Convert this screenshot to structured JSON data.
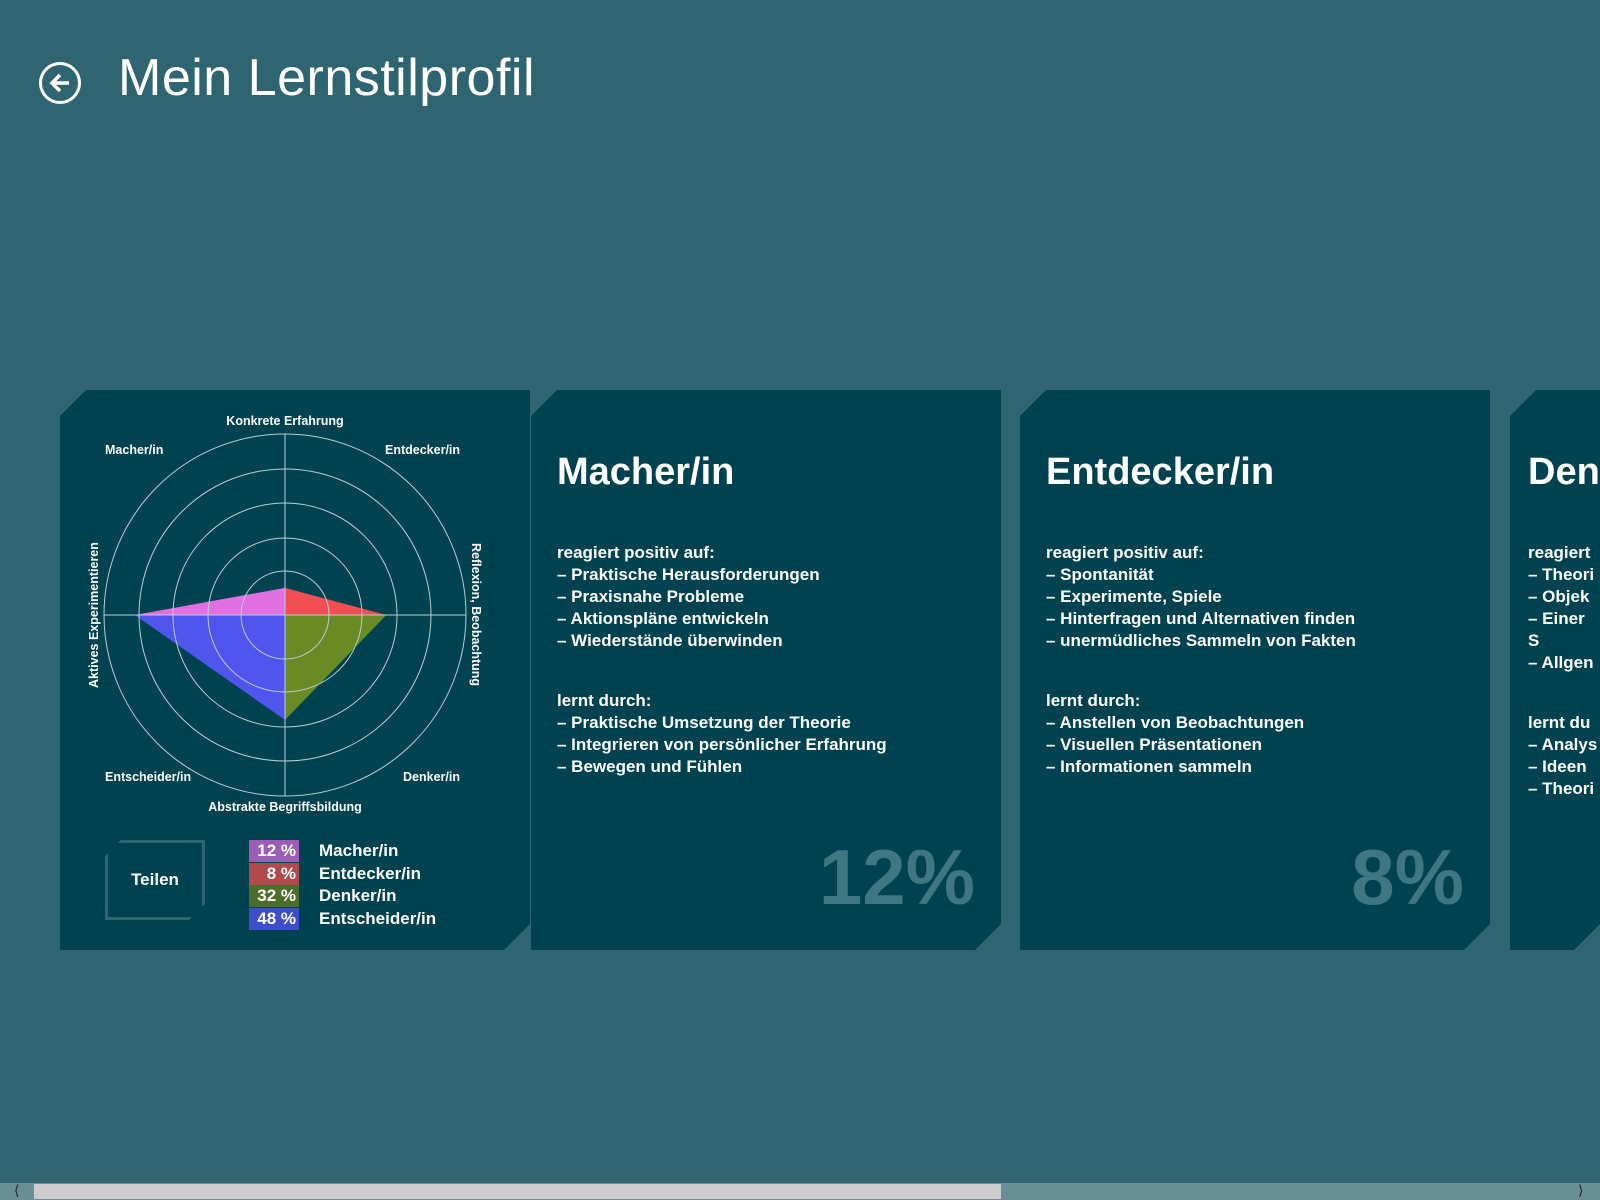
{
  "header": {
    "title": "Mein Lernstilprofil",
    "back_icon": "arrow-left-circle-icon"
  },
  "colors": {
    "background": "#2e6570",
    "card": "#00424f",
    "macher": "#e070e0",
    "entdecker": "#f24f55",
    "denker": "#6a8a26",
    "entscheider": "#5055ee"
  },
  "chart_data": {
    "type": "radar",
    "axes": {
      "top": "Konkrete Erfahrung",
      "right": "Reflexion, Beobachtung",
      "bottom": "Abstrakte Begriffsbildung",
      "left": "Aktives Experimentieren"
    },
    "axis_values": {
      "top": 0.15,
      "right": 0.56,
      "bottom": 0.58,
      "left": 0.83
    },
    "quadrants": {
      "top_left": "Macher/in",
      "top_right": "Entdecker/in",
      "bottom_right": "Denker/in",
      "bottom_left": "Entscheider/in"
    },
    "rings": 5,
    "legend": [
      {
        "value": "12 %",
        "name": "Macher/in",
        "color": "#9b5fb8"
      },
      {
        "value": "8 %",
        "name": "Entdecker/in",
        "color": "#b04a4c"
      },
      {
        "value": "32 %",
        "name": "Denker/in",
        "color": "#4c6e2a"
      },
      {
        "value": "48 %",
        "name": "Entscheider/in",
        "color": "#3d4fc8"
      }
    ]
  },
  "share_label": "Teilen",
  "cards": [
    {
      "title": "Macher/in",
      "positive_heading": "reagiert positiv auf:",
      "positive": [
        "– Praktische Herausforderungen",
        "– Praxisnahe Probleme",
        "– Aktionspläne entwickeln",
        "– Wiederstände überwinden"
      ],
      "learn_heading": "lernt durch:",
      "learn": [
        "– Praktische Umsetzung der Theorie",
        "– Integrieren von persönlicher Erfahrung",
        "– Bewegen und Fühlen"
      ],
      "percent": "12%"
    },
    {
      "title": "Entdecker/in",
      "positive_heading": "reagiert positiv auf:",
      "positive": [
        "– Spontanität",
        "– Experimente, Spiele",
        "– Hinterfragen und Alternativen finden",
        "– unermüdliches Sammeln von Fakten"
      ],
      "learn_heading": "lernt durch:",
      "learn": [
        "– Anstellen von Beobachtungen",
        "– Visuellen Präsentationen",
        "– Informationen sammeln"
      ],
      "percent": "8%"
    },
    {
      "title": "Den",
      "positive_heading": "reagiert",
      "positive": [
        "– Theori",
        "– Objek",
        "– Einer S",
        "– Allgen"
      ],
      "learn_heading": "lernt du",
      "learn": [
        "– Analys",
        "– Ideen",
        "– Theori"
      ]
    }
  ],
  "scrollbar": {
    "position": 0.61
  }
}
